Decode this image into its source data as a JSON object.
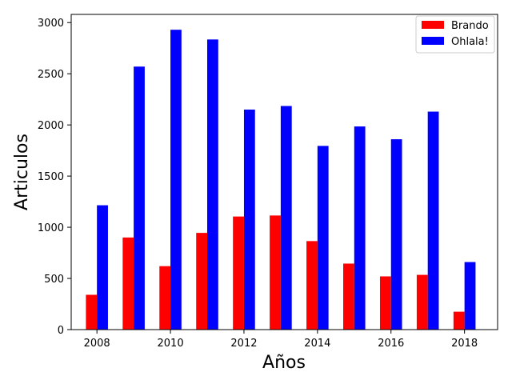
{
  "chart_data": {
    "type": "bar",
    "title": "",
    "xlabel": "Años",
    "ylabel": "Articulos",
    "x": [
      2008,
      2009,
      2010,
      2011,
      2012,
      2013,
      2014,
      2015,
      2016,
      2017,
      2018
    ],
    "xticks": [
      2008,
      2010,
      2012,
      2014,
      2016,
      2018
    ],
    "yticks": [
      0,
      500,
      1000,
      1500,
      2000,
      2500,
      3000
    ],
    "xlim": [
      2007.3,
      2018.9
    ],
    "ylim": [
      0,
      3080
    ],
    "grid": false,
    "legend": "top-right",
    "series": [
      {
        "name": "Brando",
        "color": "#ff0000",
        "values": [
          340,
          900,
          620,
          945,
          1105,
          1115,
          865,
          645,
          520,
          535,
          175
        ]
      },
      {
        "name": "Ohlala!",
        "color": "#0000ff",
        "values": [
          1215,
          2570,
          2930,
          2835,
          2150,
          2185,
          1795,
          1985,
          1860,
          2130,
          660
        ]
      }
    ]
  }
}
